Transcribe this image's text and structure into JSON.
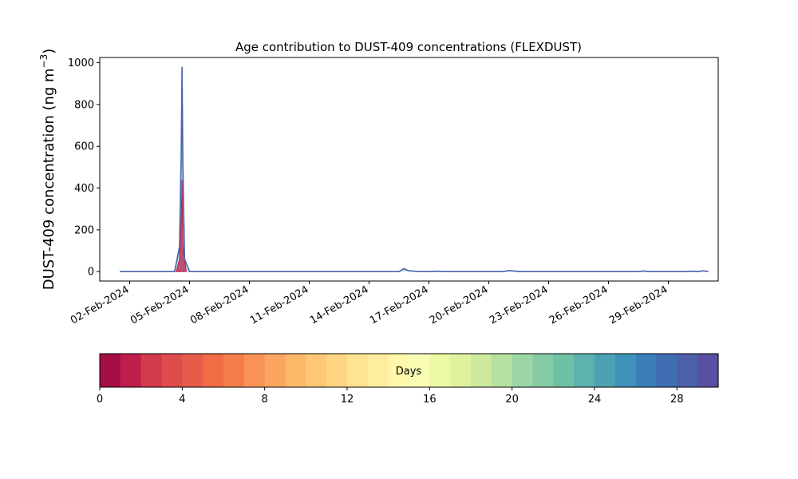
{
  "chart_data": {
    "type": "area",
    "title": "Age contribution to DUST-409 concentrations (FLEXDUST)",
    "ylabel": "DUST-409 concentration (ng m",
    "ylabel_sup": "−3",
    "ylabel_close": ")",
    "xlabel": "",
    "ylim": [
      -45,
      1025
    ],
    "xlim": [
      "2024-01-31T12:00",
      "2024-03-02T12:00"
    ],
    "yticks": [
      0,
      200,
      400,
      600,
      800,
      1000
    ],
    "xticks": [
      "02-Feb-2024",
      "05-Feb-2024",
      "08-Feb-2024",
      "11-Feb-2024",
      "14-Feb-2024",
      "17-Feb-2024",
      "20-Feb-2024",
      "23-Feb-2024",
      "26-Feb-2024",
      "29-Feb-2024"
    ],
    "xtick_dates": [
      "2024-02-02",
      "2024-02-05",
      "2024-02-08",
      "2024-02-11",
      "2024-02-14",
      "2024-02-17",
      "2024-02-20",
      "2024-02-23",
      "2024-02-26",
      "2024-02-29"
    ],
    "grid": false,
    "series_total": {
      "x": [
        "2024-02-01T12:00",
        "2024-02-04T06:00",
        "2024-02-04T12:00",
        "2024-02-04T14:00",
        "2024-02-04T15:00",
        "2024-02-04T16:00",
        "2024-02-04T18:00",
        "2024-02-05T00:00",
        "2024-02-15T12:00",
        "2024-02-15T18:00",
        "2024-02-16T00:00",
        "2024-02-16T12:00",
        "2024-02-17T00:00",
        "2024-02-17T12:00",
        "2024-02-17T18:00",
        "2024-02-18T00:00",
        "2024-02-20T18:00",
        "2024-02-21T00:00",
        "2024-02-21T06:00",
        "2024-02-21T12:00",
        "2024-02-27T12:00",
        "2024-02-27T18:00",
        "2024-02-28T00:00",
        "2024-03-01T00:00",
        "2024-03-01T06:00",
        "2024-03-01T12:00",
        "2024-03-01T18:00",
        "2024-03-02T00:00"
      ],
      "y": [
        0,
        0,
        120,
        560,
        980,
        520,
        60,
        0,
        0,
        14,
        4,
        0,
        0,
        2,
        0,
        0,
        0,
        5,
        3,
        0,
        0,
        3,
        0,
        0,
        2,
        0,
        4,
        0
      ]
    },
    "series_young": {
      "x": [
        "2024-02-04T08:00",
        "2024-02-04T12:00",
        "2024-02-04T14:00",
        "2024-02-04T15:00",
        "2024-02-04T16:00",
        "2024-02-04T20:00"
      ],
      "y": [
        0,
        60,
        250,
        440,
        120,
        0
      ]
    },
    "colorbar": {
      "label": "Days",
      "min": 0,
      "max": 30,
      "ticks": [
        0,
        4,
        8,
        12,
        16,
        20,
        24,
        28
      ],
      "colors": [
        "#a50f45",
        "#be1e4b",
        "#d03a4a",
        "#de4c4b",
        "#e65b49",
        "#f06c45",
        "#f67d4a",
        "#f99355",
        "#fba660",
        "#fdb86a",
        "#fec776",
        "#fed683",
        "#fee391",
        "#feed9e",
        "#fff7ab",
        "#f9fcb5",
        "#edf8a3",
        "#e0f29d",
        "#cce99d",
        "#b5e0a1",
        "#9dd6a4",
        "#85cba6",
        "#6fc1a6",
        "#5db2ad",
        "#4ca2b2",
        "#3e91b9",
        "#3a7fba",
        "#406eb2",
        "#4c5fa9",
        "#5a50a1"
      ],
      "line_color_total": "#4a64ad",
      "line_color_mid": "#5db2ad",
      "line_color_young": "#be1e4b"
    }
  }
}
